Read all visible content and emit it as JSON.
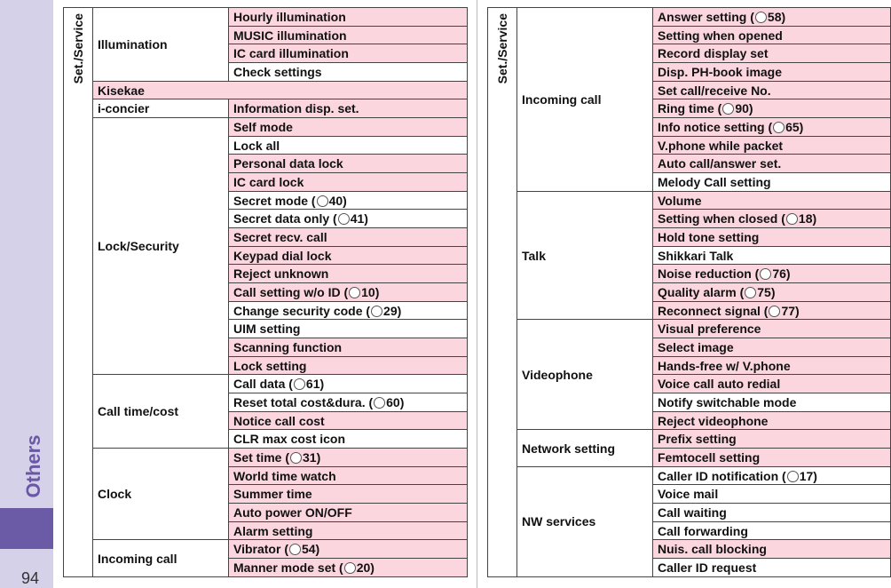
{
  "sidebar": {
    "section": "Others",
    "page": "94"
  },
  "tables": [
    {
      "group": "Set./Service",
      "rows": [
        {
          "category": "Illumination",
          "items": [
            "Hourly illumination",
            "MUSIC illumination",
            "IC card illumination",
            "Check settings"
          ]
        },
        {
          "category": "Kisekae",
          "items": []
        },
        {
          "category": "i-concier",
          "items": [
            "Information disp. set."
          ]
        },
        {
          "category": "Lock/Security",
          "items": [
            "Self mode",
            "Lock all",
            "Personal data lock",
            "IC card lock",
            {
              "label": "Secret mode (",
              "ref": "40)"
            },
            {
              "label": "Secret data only (",
              "ref": "41)"
            },
            "Secret recv. call",
            "Keypad dial lock",
            "Reject unknown",
            {
              "label": "Call setting w/o ID (",
              "ref": "10)"
            },
            {
              "label": "Change security code (",
              "ref": "29)"
            },
            "UIM setting",
            "Scanning function",
            "Lock setting"
          ]
        },
        {
          "category": "Call time/cost",
          "items": [
            {
              "label": "Call data (",
              "ref": "61)"
            },
            {
              "label": "Reset total cost&dura. (",
              "ref": "60)"
            },
            "Notice call cost",
            "CLR max cost icon"
          ]
        },
        {
          "category": "Clock",
          "items": [
            {
              "label": "Set time (",
              "ref": "31)"
            },
            "World time watch",
            "Summer time",
            "Auto power ON/OFF",
            "Alarm setting"
          ]
        },
        {
          "category": "Incoming call",
          "items": [
            {
              "label": "Vibrator (",
              "ref": "54)"
            },
            {
              "label": "Manner mode set (",
              "ref": "20)"
            }
          ]
        }
      ]
    },
    {
      "group": "Set./Service",
      "rows": [
        {
          "category": "Incoming call",
          "items": [
            {
              "label": "Answer setting (",
              "ref": "58)"
            },
            "Setting when opened",
            "Record display set",
            "Disp. PH-book image",
            "Set call/receive No.",
            {
              "label": "Ring time (",
              "ref": "90)"
            },
            {
              "label": "Info notice setting (",
              "ref": "65)"
            },
            "V.phone while packet",
            "Auto call/answer set.",
            "Melody Call setting"
          ]
        },
        {
          "category": "Talk",
          "items": [
            "Volume",
            {
              "label": "Setting when closed (",
              "ref": "18)"
            },
            "Hold tone setting",
            "Shikkari Talk",
            {
              "label": "Noise reduction (",
              "ref": "76)"
            },
            {
              "label": "Quality alarm (",
              "ref": "75)"
            },
            {
              "label": "Reconnect signal (",
              "ref": "77)"
            }
          ]
        },
        {
          "category": "Videophone",
          "items": [
            "Visual preference",
            "Select image",
            "Hands-free w/ V.phone",
            "Voice call auto redial",
            "Notify switchable mode",
            "Reject videophone"
          ]
        },
        {
          "category": "Network setting",
          "items": [
            "Prefix setting",
            "Femtocell setting"
          ]
        },
        {
          "category": "NW services",
          "items": [
            {
              "label": "Caller ID notification (",
              "ref": "17)"
            },
            "Voice mail",
            "Call waiting",
            "Call forwarding",
            "Nuis. call blocking",
            "Caller ID request"
          ]
        }
      ]
    }
  ]
}
